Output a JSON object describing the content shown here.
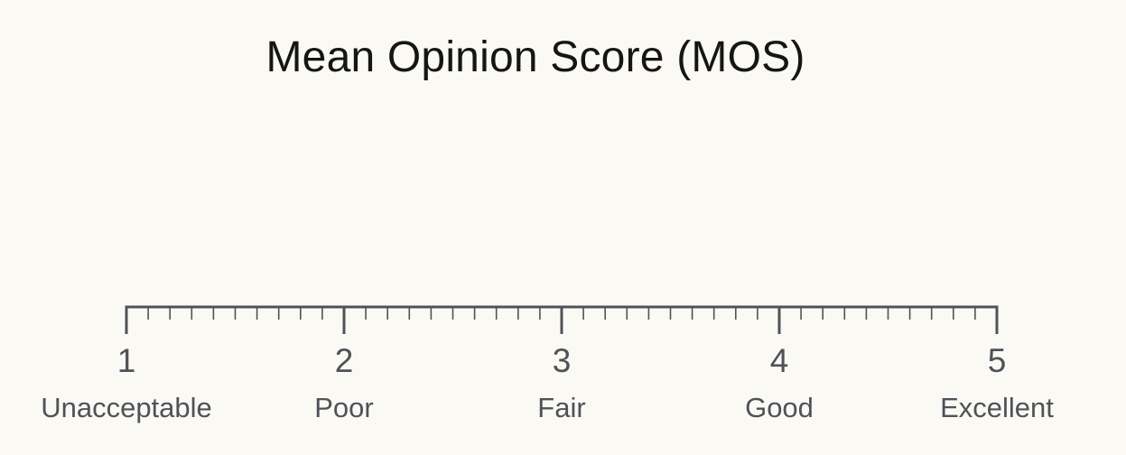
{
  "title": "Mean Opinion Score (MOS)",
  "scale": {
    "min": 1,
    "max": 5,
    "minor_divisions_per_unit": 10,
    "color": "#4f5258",
    "points": [
      {
        "value": 1,
        "number": "1",
        "label": "Unacceptable"
      },
      {
        "value": 2,
        "number": "2",
        "label": "Poor"
      },
      {
        "value": 3,
        "number": "3",
        "label": "Fair"
      },
      {
        "value": 4,
        "number": "4",
        "label": "Good"
      },
      {
        "value": 5,
        "number": "5",
        "label": "Excellent"
      }
    ]
  }
}
